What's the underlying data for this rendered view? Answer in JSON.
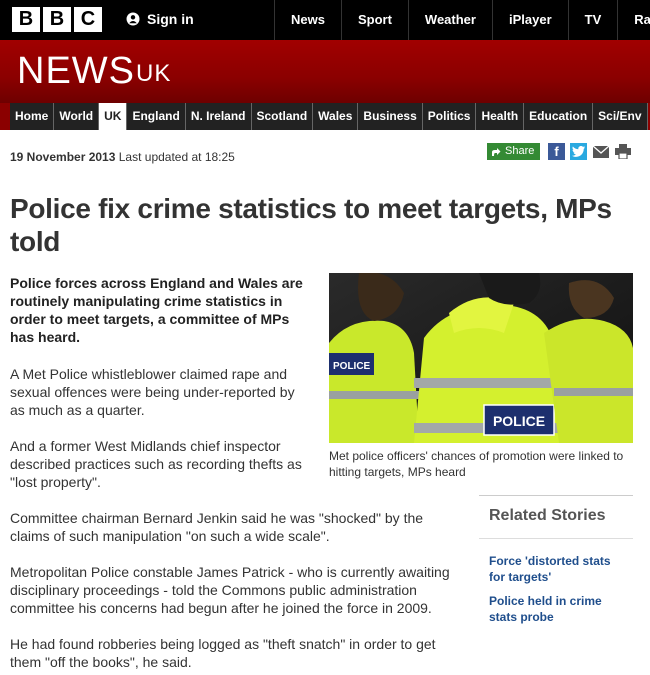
{
  "header": {
    "logo_letters": [
      "B",
      "B",
      "C"
    ],
    "signin_label": "Sign in",
    "nav": [
      "News",
      "Sport",
      "Weather",
      "iPlayer",
      "TV",
      "Rad"
    ]
  },
  "banner": {
    "title": "NEWS",
    "edition": "UK"
  },
  "sections": [
    "Home",
    "World",
    "UK",
    "England",
    "N. Ireland",
    "Scotland",
    "Wales",
    "Business",
    "Politics",
    "Health",
    "Education",
    "Sci/Env"
  ],
  "active_section": "UK",
  "article": {
    "date": "19 November 2013",
    "updated": "Last updated at 18:25",
    "share_label": "Share",
    "headline": "Police fix crime statistics to meet targets, MPs told",
    "intro": "Police forces across England and Wales are routinely manipulating crime statistics in order to meet targets, a committee of MPs has heard.",
    "paragraphs": [
      "A Met Police whistleblower claimed rape and sexual offences were being under-reported by as much as a quarter.",
      "And a former West Midlands chief inspector described practices such as recording thefts as \"lost property\".",
      "Committee chairman Bernard Jenkin said he was \"shocked\" by the claims of such manipulation \"on such a wide scale\".",
      "Metropolitan Police constable James Patrick - who is currently awaiting disciplinary proceedings - told the Commons public administration committee his concerns had begun after he joined the force in 2009.",
      "He had found robberies being logged as \"theft snatch\" in order to get them \"off the books\", he said."
    ],
    "image_caption": "Met police officers' chances of promotion were linked to hitting targets, MPs heard",
    "image_text_left": "POLICE",
    "image_text_center": "POLICE"
  },
  "related": {
    "heading": "Related Stories",
    "links": [
      "Force 'distorted stats for targets'",
      "Police held in crime stats probe"
    ]
  },
  "colors": {
    "banner_red": "#8b0000",
    "link_blue": "#1f4e8c",
    "share_green": "#348a34"
  }
}
